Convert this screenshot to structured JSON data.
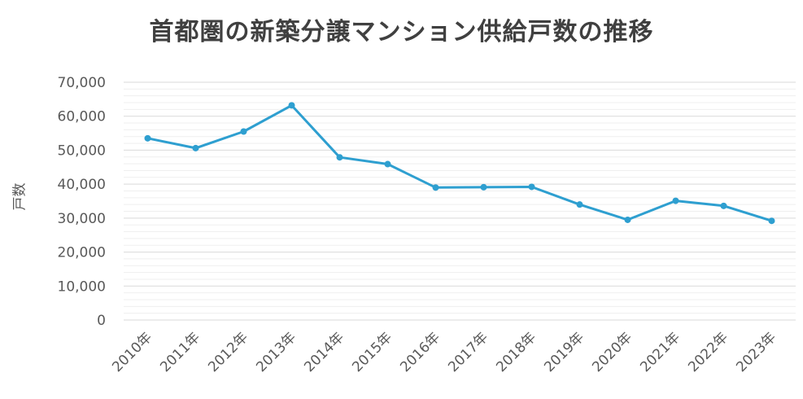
{
  "chart_data": {
    "type": "line",
    "title": "首都圏の新築分譲マンション供給戸数の推移",
    "xlabel": "",
    "ylabel": "戸数",
    "ylim": [
      0,
      70000
    ],
    "yticks": [
      "0",
      "10,000",
      "20,000",
      "30,000",
      "40,000",
      "50,000",
      "60,000",
      "70,000"
    ],
    "categories": [
      "2010年",
      "2011年",
      "2012年",
      "2013年",
      "2014年",
      "2015年",
      "2016年",
      "2017年",
      "2018年",
      "2019年",
      "2020年",
      "2021年",
      "2022年",
      "2023年"
    ],
    "series": [
      {
        "name": "",
        "values": [
          53500,
          50600,
          55500,
          63200,
          47900,
          45900,
          39000,
          39100,
          39200,
          34000,
          29500,
          35100,
          33600,
          29200
        ]
      }
    ],
    "grid": true,
    "line_color": "#2e9fd0",
    "grid_color": "#d9d9d9",
    "minor_grid_color": "#efefef",
    "text_color": "#595959",
    "title_color": "#404040"
  }
}
